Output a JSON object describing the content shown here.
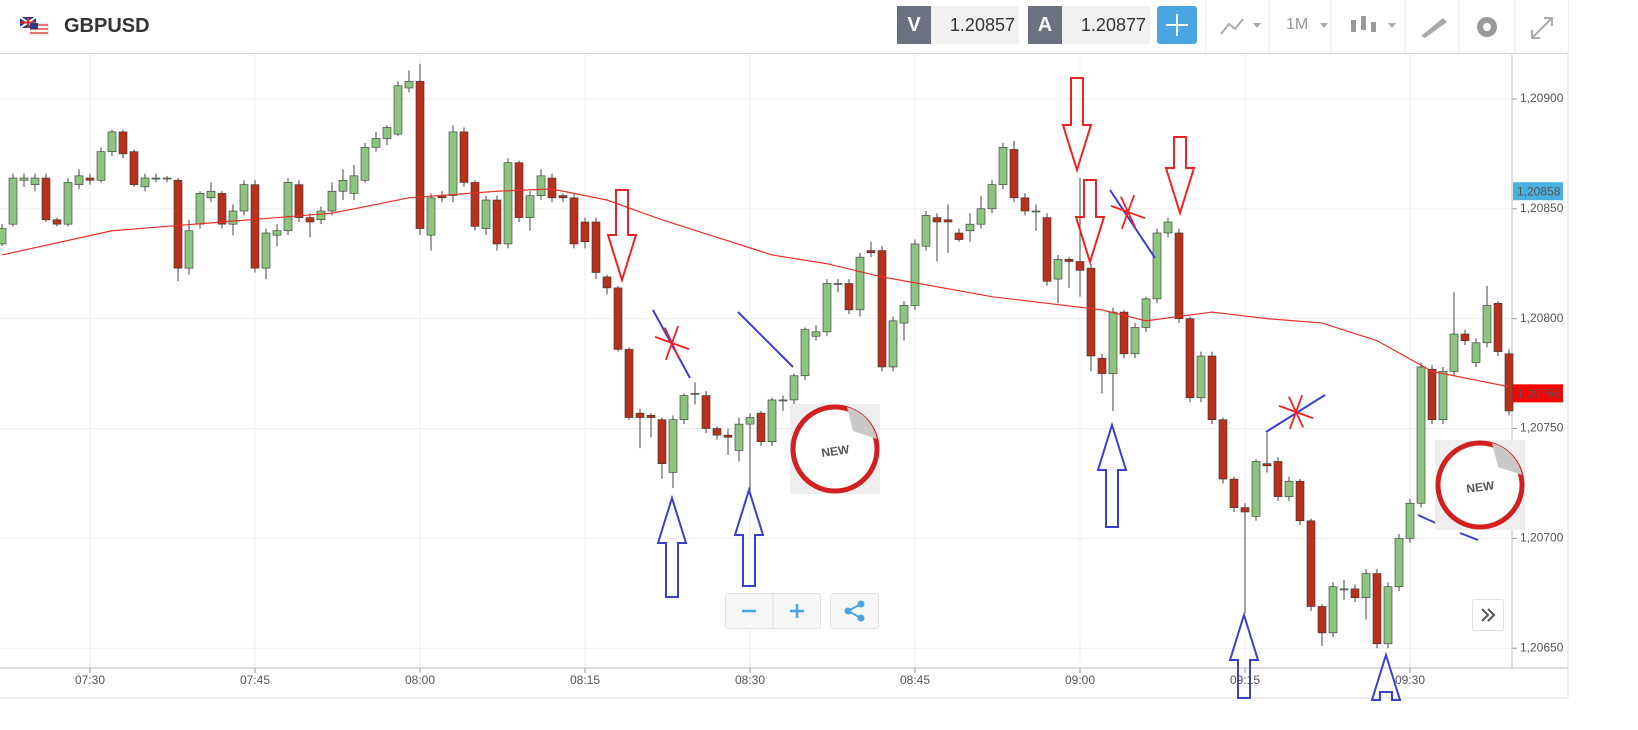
{
  "header": {
    "symbol": "GBPUSD",
    "bid_label": "V",
    "bid": 1.20857,
    "ask_label": "A",
    "ask": 1.20877,
    "timeframe": "1M"
  },
  "chart_data": {
    "type": "candlestick",
    "ohlc": [
      [
        1.20834,
        1.20843,
        1.20833,
        1.20841
      ],
      [
        1.20843,
        1.20866,
        1.20842,
        1.20864
      ],
      [
        1.20863,
        1.20866,
        1.2086,
        1.20864
      ],
      [
        1.20861,
        1.20866,
        1.20858,
        1.20864
      ],
      [
        1.20864,
        1.20866,
        1.20844,
        1.20845
      ],
      [
        1.20845,
        1.20846,
        1.20842,
        1.20843
      ],
      [
        1.20843,
        1.20864,
        1.20842,
        1.20862
      ],
      [
        1.20861,
        1.20868,
        1.20859,
        1.20865
      ],
      [
        1.20864,
        1.20866,
        1.20861,
        1.20863
      ],
      [
        1.20863,
        1.20878,
        1.20862,
        1.20876
      ],
      [
        1.20876,
        1.20886,
        1.20874,
        1.20885
      ],
      [
        1.20885,
        1.20886,
        1.20873,
        1.20875
      ],
      [
        1.20876,
        1.20877,
        1.2086,
        1.20861
      ],
      [
        1.2086,
        1.20866,
        1.20858,
        1.20864
      ],
      [
        1.20864,
        1.20866,
        1.20862,
        1.20864
      ],
      [
        1.20864,
        1.20865,
        1.20862,
        1.20864
      ],
      [
        1.20863,
        1.20864,
        1.20817,
        1.20823
      ],
      [
        1.20823,
        1.20845,
        1.2082,
        1.2084
      ],
      [
        1.20843,
        1.20858,
        1.20841,
        1.20857
      ],
      [
        1.20855,
        1.20862,
        1.20853,
        1.20858
      ],
      [
        1.20857,
        1.20858,
        1.20841,
        1.20843
      ],
      [
        1.20843,
        1.20852,
        1.20838,
        1.20849
      ],
      [
        1.20849,
        1.20863,
        1.20847,
        1.20861
      ],
      [
        1.20861,
        1.20863,
        1.20821,
        1.20823
      ],
      [
        1.20823,
        1.20841,
        1.20818,
        1.20839
      ],
      [
        1.20838,
        1.20843,
        1.20833,
        1.2084
      ],
      [
        1.2084,
        1.20864,
        1.20838,
        1.20862
      ],
      [
        1.20861,
        1.20863,
        1.20844,
        1.20846
      ],
      [
        1.20846,
        1.20848,
        1.20837,
        1.20844
      ],
      [
        1.20845,
        1.20851,
        1.20843,
        1.20849
      ],
      [
        1.20849,
        1.20862,
        1.20847,
        1.20858
      ],
      [
        1.20858,
        1.20868,
        1.20854,
        1.20863
      ],
      [
        1.20857,
        1.2087,
        1.20854,
        1.20865
      ],
      [
        1.20863,
        1.2088,
        1.20862,
        1.20878
      ],
      [
        1.20878,
        1.20885,
        1.20876,
        1.20882
      ],
      [
        1.20882,
        1.20888,
        1.20879,
        1.20887
      ],
      [
        1.20884,
        1.20908,
        1.20883,
        1.20906
      ],
      [
        1.20905,
        1.20913,
        1.20903,
        1.20908
      ],
      [
        1.20908,
        1.20916,
        1.20838,
        1.20841
      ],
      [
        1.20838,
        1.20857,
        1.20831,
        1.20855
      ],
      [
        1.20856,
        1.20858,
        1.20853,
        1.20855
      ],
      [
        1.20856,
        1.20888,
        1.20853,
        1.20885
      ],
      [
        1.20885,
        1.20887,
        1.2086,
        1.20862
      ],
      [
        1.20862,
        1.20863,
        1.2084,
        1.20842
      ],
      [
        1.20841,
        1.20856,
        1.20838,
        1.20854
      ],
      [
        1.20854,
        1.20856,
        1.20831,
        1.20834
      ],
      [
        1.20834,
        1.20873,
        1.20832,
        1.20871
      ],
      [
        1.20871,
        1.20872,
        1.20844,
        1.20846
      ],
      [
        1.20846,
        1.20858,
        1.2084,
        1.20856
      ],
      [
        1.20856,
        1.20868,
        1.20854,
        1.20865
      ],
      [
        1.20864,
        1.20866,
        1.20853,
        1.20855
      ],
      [
        1.20856,
        1.20857,
        1.20853,
        1.20855
      ],
      [
        1.20855,
        1.20857,
        1.20832,
        1.20834
      ],
      [
        1.20844,
        1.20846,
        1.20832,
        1.20835
      ],
      [
        1.20844,
        1.20846,
        1.20818,
        1.20821
      ],
      [
        1.20819,
        1.2082,
        1.20811,
        1.20814
      ],
      [
        1.20814,
        1.20815,
        1.20785,
        1.20786
      ],
      [
        1.20786,
        1.20787,
        1.20754,
        1.20755
      ],
      [
        1.20757,
        1.20759,
        1.20741,
        1.20755
      ],
      [
        1.20756,
        1.20757,
        1.20746,
        1.20755
      ],
      [
        1.20754,
        1.20755,
        1.20727,
        1.20734
      ],
      [
        1.2073,
        1.20756,
        1.20723,
        1.20754
      ],
      [
        1.20754,
        1.20766,
        1.20752,
        1.20765
      ],
      [
        1.20766,
        1.20771,
        1.20761,
        1.20766
      ],
      [
        1.20765,
        1.20767,
        1.20748,
        1.2075
      ],
      [
        1.2075,
        1.20751,
        1.20745,
        1.20747
      ],
      [
        1.20747,
        1.2075,
        1.20738,
        1.20746
      ],
      [
        1.2074,
        1.20755,
        1.20735,
        1.20752
      ],
      [
        1.20752,
        1.20757,
        1.20722,
        1.20755
      ],
      [
        1.20757,
        1.20758,
        1.20742,
        1.20744
      ],
      [
        1.20744,
        1.20764,
        1.20742,
        1.20763
      ],
      [
        1.20763,
        1.20765,
        1.20758,
        1.20763
      ],
      [
        1.20763,
        1.20775,
        1.20761,
        1.20774
      ],
      [
        1.20774,
        1.20796,
        1.20772,
        1.20795
      ],
      [
        1.20792,
        1.20797,
        1.2079,
        1.20794
      ],
      [
        1.20794,
        1.20818,
        1.20792,
        1.20816
      ],
      [
        1.20816,
        1.20818,
        1.20812,
        1.20816
      ],
      [
        1.20816,
        1.20818,
        1.20802,
        1.20804
      ],
      [
        1.20804,
        1.2083,
        1.20801,
        1.20828
      ],
      [
        1.20831,
        1.20835,
        1.20828,
        1.2083
      ],
      [
        1.20831,
        1.20833,
        1.20776,
        1.20778
      ],
      [
        1.20778,
        1.20801,
        1.20776,
        1.20799
      ],
      [
        1.20798,
        1.20808,
        1.2079,
        1.20806
      ],
      [
        1.20806,
        1.20836,
        1.20804,
        1.20834
      ],
      [
        1.20833,
        1.20849,
        1.20831,
        1.20847
      ],
      [
        1.20846,
        1.20848,
        1.20826,
        1.20844
      ],
      [
        1.20845,
        1.20852,
        1.2083,
        1.20844
      ],
      [
        1.20839,
        1.20841,
        1.20835,
        1.20836
      ],
      [
        1.2084,
        1.20848,
        1.20835,
        1.20843
      ],
      [
        1.20843,
        1.20856,
        1.20841,
        1.2085
      ],
      [
        1.2085,
        1.20863,
        1.20848,
        1.20861
      ],
      [
        1.20861,
        1.2088,
        1.20859,
        1.20878
      ],
      [
        1.20877,
        1.20881,
        1.20853,
        1.20855
      ],
      [
        1.20855,
        1.20857,
        1.20847,
        1.20849
      ],
      [
        1.20849,
        1.20852,
        1.2084,
        1.20849
      ],
      [
        1.20846,
        1.20848,
        1.20815,
        1.20817
      ],
      [
        1.20818,
        1.20829,
        1.20807,
        1.20827
      ],
      [
        1.20827,
        1.20828,
        1.20814,
        1.20826
      ],
      [
        1.20826,
        1.20864,
        1.2081,
        1.20822
      ],
      [
        1.20823,
        1.20825,
        1.20776,
        1.20783
      ],
      [
        1.20782,
        1.20784,
        1.20766,
        1.20775
      ],
      [
        1.20775,
        1.20805,
        1.20758,
        1.20803
      ],
      [
        1.20803,
        1.20804,
        1.20782,
        1.20784
      ],
      [
        1.20784,
        1.20798,
        1.20782,
        1.20796
      ],
      [
        1.20796,
        1.2081,
        1.20794,
        1.20809
      ],
      [
        1.20809,
        1.20841,
        1.20807,
        1.20839
      ],
      [
        1.20839,
        1.20846,
        1.20837,
        1.20844
      ],
      [
        1.20839,
        1.20841,
        1.20798,
        1.208
      ],
      [
        1.208,
        1.20801,
        1.20762,
        1.20764
      ],
      [
        1.20764,
        1.20785,
        1.20762,
        1.20783
      ],
      [
        1.20783,
        1.20785,
        1.20752,
        1.20754
      ],
      [
        1.20754,
        1.20755,
        1.20725,
        1.20727
      ],
      [
        1.20727,
        1.20728,
        1.20712,
        1.20714
      ],
      [
        1.20714,
        1.20716,
        1.20666,
        1.20712
      ],
      [
        1.2071,
        1.20736,
        1.20708,
        1.20735
      ],
      [
        1.20734,
        1.20748,
        1.2073,
        1.20733
      ],
      [
        1.20735,
        1.20737,
        1.20717,
        1.20719
      ],
      [
        1.20719,
        1.20728,
        1.20717,
        1.20726
      ],
      [
        1.20726,
        1.20727,
        1.20706,
        1.20708
      ],
      [
        1.20708,
        1.20709,
        1.20667,
        1.20669
      ],
      [
        1.20669,
        1.2067,
        1.20651,
        1.20657
      ],
      [
        1.20657,
        1.2068,
        1.20655,
        1.20678
      ],
      [
        1.20677,
        1.20681,
        1.20672,
        1.20677
      ],
      [
        1.20677,
        1.20679,
        1.20671,
        1.20673
      ],
      [
        1.20673,
        1.20686,
        1.20663,
        1.20684
      ],
      [
        1.20684,
        1.20686,
        1.2065,
        1.20652
      ],
      [
        1.20652,
        1.2068,
        1.2065,
        1.20678
      ],
      [
        1.20678,
        1.20702,
        1.20676,
        1.207
      ],
      [
        1.207,
        1.20718,
        1.20698,
        1.20716
      ],
      [
        1.20716,
        1.2078,
        1.20714,
        1.20778
      ],
      [
        1.20777,
        1.20779,
        1.20752,
        1.20754
      ],
      [
        1.20754,
        1.20778,
        1.20752,
        1.20776
      ],
      [
        1.20776,
        1.20812,
        1.20774,
        1.20793
      ],
      [
        1.20793,
        1.20795,
        1.20788,
        1.2079
      ],
      [
        1.2078,
        1.20791,
        1.20778,
        1.20789
      ],
      [
        1.20789,
        1.20815,
        1.20787,
        1.20806
      ],
      [
        1.20807,
        1.20808,
        1.20783,
        1.20785
      ],
      [
        1.20784,
        1.20786,
        1.20756,
        1.20758
      ]
    ],
    "up_color": "#8dc47f",
    "down_color": "#b8311c",
    "xlim": [
      -0.5,
      137.5
    ],
    "xticks": [
      {
        "value": 8,
        "label": "07:30"
      },
      {
        "value": 23,
        "label": "07:45"
      },
      {
        "value": 38,
        "label": "08:00"
      },
      {
        "value": 53,
        "label": "08:15"
      },
      {
        "value": 68,
        "label": "08:30"
      },
      {
        "value": 83,
        "label": "08:45"
      },
      {
        "value": 98,
        "label": "09:00"
      },
      {
        "value": 113,
        "label": "09:15"
      },
      {
        "value": 128,
        "label": "09:30"
      }
    ],
    "ylim": [
      1.20641,
      1.2092
    ],
    "yticks": [
      {
        "value": 1.2065,
        "label": "1,20650"
      },
      {
        "value": 1.207,
        "label": "1,20700"
      },
      {
        "value": 1.2075,
        "label": "1,20750"
      },
      {
        "value": 1.208,
        "label": "1,20800"
      },
      {
        "value": 1.2085,
        "label": "1,20850"
      },
      {
        "value": 1.209,
        "label": "1,20900"
      }
    ],
    "grid": true,
    "moving_average": {
      "color": "#e8312a",
      "x": [
        0,
        10,
        20,
        30,
        37,
        45,
        50,
        55,
        60,
        65,
        70,
        75,
        80,
        90,
        100,
        104,
        110,
        115,
        120,
        125,
        130,
        137
      ],
      "values": [
        1.20829,
        1.2084,
        1.20844,
        1.20848,
        1.20855,
        1.20858,
        1.20859,
        1.20854,
        1.20845,
        1.20837,
        1.20829,
        1.20825,
        1.20819,
        1.2081,
        1.20804,
        1.20799,
        1.20803,
        1.208,
        1.20798,
        1.2079,
        1.20776,
        1.20769
      ]
    },
    "price_markers": [
      {
        "value": 1.20858,
        "label": "1,20858",
        "color": "#4ab0de"
      },
      {
        "value": 1.20766,
        "label": "1,20766",
        "color": "#ff0000"
      }
    ],
    "stickers": [
      "NEW",
      "NEW"
    ]
  }
}
